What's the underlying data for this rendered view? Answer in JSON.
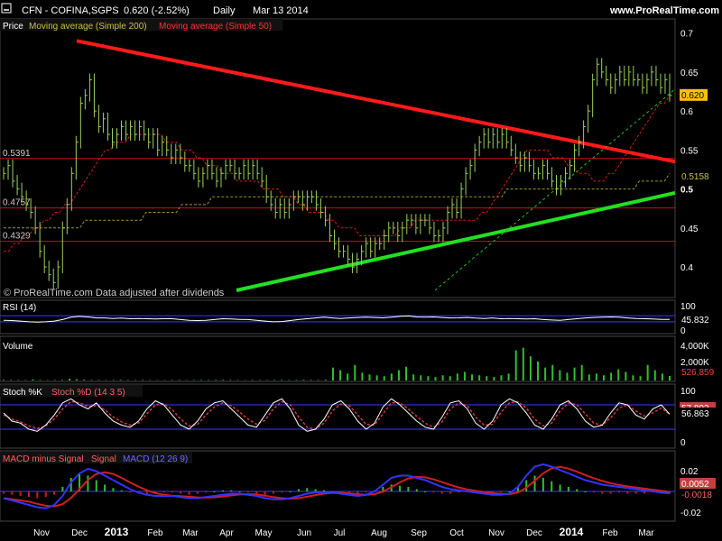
{
  "header": {
    "minimize_icon": "minimize-icon",
    "symbol": "CFN - COFINA,SGPS",
    "last": "0.620 (-2.52%)",
    "period": "Daily",
    "date": "Mar 13 2014",
    "site": "www.ProRealTime.com"
  },
  "watermark": "© ProRealTime.com  Data adjusted after dividends",
  "colors": {
    "background": "#000000",
    "price": "#9bd15c",
    "ma200": "#9c9a2a",
    "ma50": "#d41a1a",
    "resistance": "#ff1a1a",
    "support": "#22e022",
    "rsi": "#ffffff",
    "stoch_k": "#ffffff",
    "stoch_d": "#cc3a3a",
    "macd": "#3333ff",
    "signal": "#cc2020",
    "hist_pos": "#2ec02e",
    "hist_neg": "#c02020",
    "panel_line": "#3a3aff",
    "hline": "#cc1010"
  },
  "chart_data": [
    {
      "type": "line",
      "panel": "price",
      "legend": [
        "Price",
        "Moving average (Simple 200)",
        "Moving average (Simple 50)"
      ],
      "ylim": [
        0.37,
        0.71
      ],
      "yticks": [
        "0.7",
        "0.65",
        "0.6",
        "0.55",
        "0.5",
        "0.45",
        "0.4"
      ],
      "last_badges": [
        "0.620",
        "0.5158"
      ],
      "horizontal_levels": [
        {
          "value": 0.5391,
          "label": "0.5391"
        },
        {
          "value": 0.4757,
          "label": "0.4757"
        },
        {
          "value": 0.4329,
          "label": "0.4329"
        }
      ],
      "closes": [
        0.52,
        0.53,
        0.51,
        0.5,
        0.49,
        0.48,
        0.47,
        0.45,
        0.42,
        0.4,
        0.39,
        0.38,
        0.4,
        0.45,
        0.48,
        0.52,
        0.56,
        0.61,
        0.62,
        0.64,
        0.6,
        0.58,
        0.59,
        0.57,
        0.56,
        0.57,
        0.58,
        0.57,
        0.58,
        0.57,
        0.58,
        0.57,
        0.56,
        0.57,
        0.55,
        0.56,
        0.55,
        0.54,
        0.55,
        0.54,
        0.53,
        0.53,
        0.52,
        0.51,
        0.52,
        0.53,
        0.52,
        0.51,
        0.52,
        0.53,
        0.53,
        0.52,
        0.52,
        0.53,
        0.52,
        0.53,
        0.52,
        0.51,
        0.49,
        0.48,
        0.47,
        0.48,
        0.47,
        0.48,
        0.49,
        0.49,
        0.48,
        0.49,
        0.49,
        0.48,
        0.47,
        0.46,
        0.44,
        0.43,
        0.42,
        0.42,
        0.41,
        0.4,
        0.41,
        0.42,
        0.43,
        0.42,
        0.43,
        0.43,
        0.44,
        0.45,
        0.45,
        0.44,
        0.45,
        0.46,
        0.46,
        0.45,
        0.46,
        0.46,
        0.45,
        0.44,
        0.44,
        0.45,
        0.47,
        0.48,
        0.47,
        0.5,
        0.52,
        0.53,
        0.55,
        0.56,
        0.57,
        0.56,
        0.57,
        0.56,
        0.57,
        0.56,
        0.55,
        0.54,
        0.53,
        0.54,
        0.53,
        0.52,
        0.52,
        0.53,
        0.52,
        0.51,
        0.5,
        0.51,
        0.52,
        0.53,
        0.55,
        0.56,
        0.58,
        0.6,
        0.64,
        0.66,
        0.65,
        0.64,
        0.63,
        0.64,
        0.65,
        0.64,
        0.65,
        0.64,
        0.64,
        0.63,
        0.64,
        0.65,
        0.64,
        0.63,
        0.64,
        0.62
      ],
      "ma50_values": [
        0.42,
        0.42,
        0.43,
        0.43,
        0.44,
        0.44,
        0.45,
        0.45,
        0.46,
        0.46,
        0.47,
        0.47,
        0.48,
        0.48,
        0.49,
        0.5,
        0.51,
        0.52,
        0.53,
        0.54,
        0.55,
        0.55,
        0.56,
        0.56,
        0.56,
        0.57,
        0.57,
        0.57,
        0.57,
        0.57,
        0.57,
        0.57,
        0.56,
        0.56,
        0.56,
        0.55,
        0.55,
        0.55,
        0.54,
        0.54,
        0.53,
        0.53,
        0.53,
        0.52,
        0.52,
        0.52,
        0.51,
        0.51,
        0.51,
        0.51,
        0.51,
        0.5,
        0.5,
        0.5,
        0.5,
        0.49,
        0.49,
        0.49,
        0.48,
        0.48,
        0.47,
        0.47,
        0.47,
        0.47,
        0.46,
        0.46,
        0.45,
        0.45,
        0.45,
        0.45,
        0.44,
        0.44,
        0.44,
        0.44,
        0.44,
        0.44,
        0.44,
        0.44,
        0.45,
        0.45,
        0.45,
        0.46,
        0.46,
        0.46,
        0.46,
        0.46,
        0.46,
        0.46,
        0.46,
        0.46,
        0.46,
        0.46,
        0.46,
        0.46,
        0.47,
        0.47,
        0.48,
        0.49,
        0.5,
        0.51,
        0.52,
        0.53,
        0.54,
        0.55,
        0.55,
        0.55,
        0.55,
        0.55,
        0.54,
        0.54,
        0.54,
        0.53,
        0.53,
        0.52,
        0.52,
        0.52,
        0.51,
        0.51,
        0.51,
        0.52,
        0.52,
        0.53,
        0.54,
        0.55,
        0.56,
        0.57,
        0.58,
        0.59,
        0.6,
        0.61,
        0.61,
        0.62
      ],
      "ma200_values": [
        0.45,
        0.45,
        0.45,
        0.45,
        0.45,
        0.45,
        0.45,
        0.45,
        0.45,
        0.45,
        0.45,
        0.45,
        0.45,
        0.45,
        0.45,
        0.45,
        0.46,
        0.46,
        0.46,
        0.46,
        0.46,
        0.46,
        0.46,
        0.46,
        0.46,
        0.46,
        0.46,
        0.46,
        0.47,
        0.47,
        0.47,
        0.47,
        0.47,
        0.47,
        0.47,
        0.48,
        0.48,
        0.48,
        0.48,
        0.48,
        0.48,
        0.49,
        0.49,
        0.49,
        0.49,
        0.49,
        0.49,
        0.49,
        0.49,
        0.49,
        0.49,
        0.49,
        0.49,
        0.49,
        0.49,
        0.49,
        0.49,
        0.49,
        0.49,
        0.49,
        0.49,
        0.49,
        0.49,
        0.49,
        0.49,
        0.49,
        0.49,
        0.49,
        0.49,
        0.49,
        0.49,
        0.49,
        0.49,
        0.49,
        0.49,
        0.49,
        0.49,
        0.49,
        0.49,
        0.49,
        0.49,
        0.49,
        0.49,
        0.49,
        0.49,
        0.49,
        0.49,
        0.49,
        0.49,
        0.49,
        0.49,
        0.49,
        0.49,
        0.49,
        0.49,
        0.49,
        0.49,
        0.49,
        0.49,
        0.5,
        0.5,
        0.5,
        0.5,
        0.5,
        0.5,
        0.5,
        0.5,
        0.5,
        0.5,
        0.5,
        0.5,
        0.5,
        0.5,
        0.5,
        0.5,
        0.5,
        0.5,
        0.5,
        0.5,
        0.5,
        0.5,
        0.5,
        0.5,
        0.5,
        0.5,
        0.51,
        0.51,
        0.51,
        0.51,
        0.51,
        0.51,
        0.52
      ],
      "trendlines": [
        {
          "name": "resistance",
          "from": 0.69,
          "to": 0.535
        },
        {
          "name": "support",
          "from": 0.37,
          "to": 0.495
        },
        {
          "name": "short_support",
          "from": 0.37,
          "to": 0.628
        }
      ]
    },
    {
      "type": "line",
      "panel": "rsi",
      "legend": [
        "RSI (14)"
      ],
      "ylim": [
        0,
        100
      ],
      "yticks": [
        "100",
        "0"
      ],
      "last_badge": "45.832",
      "values": [
        40,
        38,
        35,
        30,
        28,
        30,
        35,
        45,
        60,
        65,
        62,
        55,
        55,
        52,
        54,
        50,
        52,
        50,
        48,
        50,
        50,
        45,
        40,
        38,
        40,
        45,
        50,
        48,
        46,
        45,
        40,
        35,
        30,
        32,
        38,
        45,
        50,
        55,
        60,
        55,
        52,
        55,
        58,
        60,
        58,
        56,
        60,
        65,
        68,
        62,
        60,
        62,
        58,
        55,
        56,
        58,
        54,
        52,
        55,
        50,
        52,
        50,
        48,
        50,
        45,
        42,
        40,
        45,
        50,
        55,
        58,
        60,
        62,
        60,
        55,
        52,
        50,
        48,
        46,
        46
      ]
    },
    {
      "type": "bar",
      "panel": "volume",
      "legend": [
        "Volume"
      ],
      "yticks": [
        "4,000K",
        "2,000K"
      ],
      "last_badge": "526,859",
      "values": [
        80,
        60,
        50,
        40,
        120,
        60,
        40,
        50,
        70,
        200,
        150,
        90,
        60,
        50,
        40,
        60,
        70,
        50,
        40,
        60,
        50,
        40,
        30,
        50,
        60,
        40,
        50,
        60,
        50,
        70,
        80,
        60,
        50,
        40,
        60,
        50,
        40,
        60,
        70,
        50,
        60,
        80,
        70,
        60,
        90,
        1500,
        1200,
        800,
        1800,
        900,
        700,
        600,
        500,
        800,
        1200,
        1600,
        700,
        600,
        500,
        400,
        600,
        500,
        800,
        1000,
        700,
        600,
        500,
        400,
        600,
        800,
        3500,
        3800,
        2800,
        2200,
        1500,
        1800,
        1200,
        900,
        1500,
        1800,
        700,
        800,
        600,
        900,
        1300,
        1000,
        600,
        500,
        1800,
        1200,
        800,
        526
      ]
    },
    {
      "type": "line",
      "panel": "stochastic",
      "legend": [
        "Stoch %K",
        "Stoch %D (14 3 5)"
      ],
      "ylim": [
        0,
        100
      ],
      "yticks": [
        "100",
        "0"
      ],
      "last_badges": [
        "57.892",
        "56.863"
      ],
      "k_values": [
        60,
        40,
        35,
        20,
        15,
        30,
        55,
        85,
        95,
        80,
        70,
        85,
        60,
        40,
        30,
        25,
        40,
        70,
        90,
        80,
        55,
        30,
        20,
        40,
        70,
        85,
        90,
        70,
        50,
        30,
        25,
        55,
        85,
        95,
        70,
        30,
        15,
        20,
        45,
        80,
        90,
        70,
        40,
        20,
        35,
        75,
        95,
        80,
        60,
        40,
        25,
        20,
        50,
        85,
        90,
        70,
        35,
        20,
        40,
        80,
        95,
        85,
        60,
        30,
        20,
        45,
        80,
        90,
        70,
        40,
        25,
        30,
        60,
        85,
        80,
        55,
        45,
        70,
        80,
        57
      ],
      "d_values": [
        55,
        45,
        38,
        28,
        22,
        28,
        45,
        70,
        88,
        85,
        76,
        78,
        68,
        50,
        38,
        30,
        35,
        58,
        80,
        83,
        68,
        45,
        28,
        32,
        55,
        75,
        85,
        78,
        62,
        45,
        32,
        42,
        70,
        88,
        80,
        50,
        25,
        20,
        35,
        65,
        82,
        78,
        55,
        32,
        30,
        58,
        85,
        85,
        70,
        52,
        35,
        25,
        38,
        70,
        85,
        78,
        50,
        30,
        32,
        62,
        85,
        88,
        72,
        45,
        28,
        35,
        65,
        85,
        80,
        58,
        35,
        30,
        48,
        72,
        80,
        65,
        52,
        60,
        72,
        57
      ]
    },
    {
      "type": "bar",
      "panel": "macd",
      "legend": [
        "MACD minus Signal",
        "Signal",
        "MACD (12 26 9)"
      ],
      "yticks": [
        "0.02",
        "0",
        "-0.02"
      ],
      "last_badges": [
        "0.0052",
        "-0.0018"
      ],
      "hist_values": [
        -0.002,
        -0.003,
        -0.004,
        -0.005,
        -0.006,
        -0.005,
        -0.003,
        0.004,
        0.012,
        0.016,
        0.014,
        0.01,
        0.006,
        0.003,
        0.001,
        -0.001,
        -0.002,
        -0.003,
        -0.002,
        -0.001,
        -0.001,
        -0.002,
        -0.003,
        -0.002,
        -0.001,
        0.0,
        0.001,
        0.001,
        0.0,
        -0.001,
        -0.002,
        -0.003,
        -0.002,
        -0.001,
        0.0,
        0.002,
        0.003,
        0.002,
        0.001,
        0.0,
        -0.001,
        -0.002,
        -0.002,
        -0.001,
        0.001,
        0.004,
        0.006,
        0.005,
        0.004,
        0.002,
        0.0,
        -0.001,
        -0.002,
        -0.002,
        -0.001,
        0.0,
        -0.001,
        -0.002,
        -0.002,
        -0.001,
        0.0,
        0.004,
        0.01,
        0.014,
        0.012,
        0.009,
        0.006,
        0.004,
        0.002,
        0.0,
        -0.001,
        -0.002,
        -0.002,
        -0.001,
        -0.002,
        -0.002,
        -0.002,
        -0.001,
        -0.002,
        -0.002
      ],
      "macd_values": [
        -0.006,
        -0.008,
        -0.01,
        -0.012,
        -0.014,
        -0.015,
        -0.012,
        -0.004,
        0.008,
        0.016,
        0.02,
        0.018,
        0.014,
        0.01,
        0.006,
        0.002,
        -0.001,
        -0.003,
        -0.004,
        -0.004,
        -0.004,
        -0.005,
        -0.006,
        -0.006,
        -0.005,
        -0.004,
        -0.003,
        -0.002,
        -0.002,
        -0.003,
        -0.004,
        -0.006,
        -0.007,
        -0.007,
        -0.006,
        -0.004,
        -0.002,
        -0.001,
        -0.001,
        -0.001,
        -0.002,
        -0.003,
        -0.004,
        -0.003,
        0.0,
        0.006,
        0.012,
        0.014,
        0.014,
        0.012,
        0.01,
        0.007,
        0.004,
        0.002,
        0.001,
        0.0,
        -0.001,
        -0.002,
        -0.003,
        -0.003,
        -0.002,
        0.004,
        0.014,
        0.022,
        0.024,
        0.022,
        0.019,
        0.016,
        0.013,
        0.01,
        0.008,
        0.006,
        0.005,
        0.004,
        0.003,
        0.002,
        0.001,
        0.0,
        -0.001,
        -0.0018
      ]
    }
  ],
  "x_axis": [
    "Nov",
    "Dec",
    "2013",
    "Feb",
    "Mar",
    "Apr",
    "May",
    "Jun",
    "Jul",
    "Aug",
    "Sep",
    "Oct",
    "Nov",
    "Dec",
    "2014",
    "Feb",
    "Mar"
  ]
}
